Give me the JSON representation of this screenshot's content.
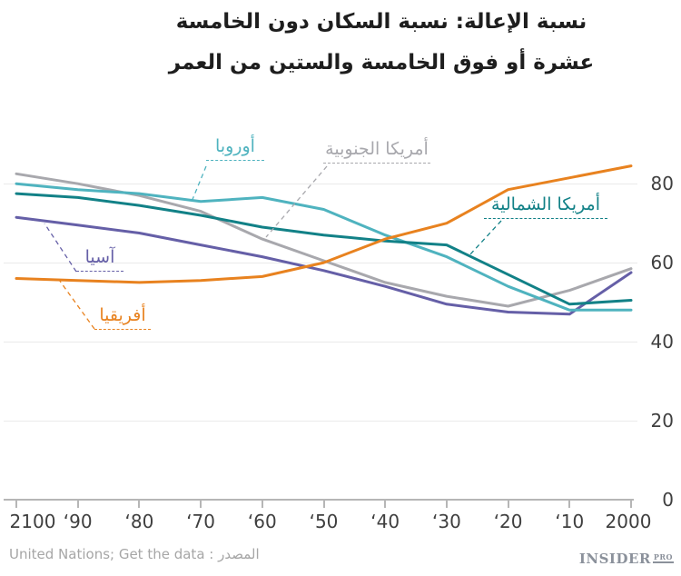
{
  "title": {
    "line1": "نسبة الإعالة: نسبة السكان دون الخامسة",
    "line2": "عشرة أو فوق الخامسة والستين من العمر"
  },
  "footer": {
    "source": "United Nations; Get the data : المصدر",
    "logo_text": "INSIDER",
    "logo_suffix": "PRO"
  },
  "chart_data": {
    "type": "line",
    "title": "نسبة الإعالة: نسبة السكان دون الخامسة عشرة أو فوق الخامسة والستين من العمر",
    "x": [
      2100,
      2090,
      2080,
      2070,
      2060,
      2050,
      2040,
      2030,
      2020,
      2010,
      2000
    ],
    "x_tick_labels": [
      "2100",
      "‘90",
      "‘80",
      "‘70",
      "‘60",
      "‘50",
      "‘40",
      "‘30",
      "‘20",
      "‘10",
      "2000"
    ],
    "x_axis_reversed": true,
    "y_ticks": [
      80,
      60,
      40,
      20,
      0
    ],
    "y_tick_labels": [
      "80",
      "60",
      "40",
      "20",
      "0"
    ],
    "ylim": [
      0,
      88
    ],
    "grid": "horizontal",
    "legend_position": "inline-labels",
    "series": [
      {
        "id": "south_america",
        "name": "أمريكا الجنوبية",
        "color": "#a8a8ad",
        "values": [
          82.5,
          80,
          77,
          73,
          66,
          60.5,
          55,
          51.5,
          49,
          53,
          58.5
        ]
      },
      {
        "id": "asia",
        "name": "آسيا",
        "color": "#655fa7",
        "values": [
          71.5,
          69.5,
          67.5,
          64.5,
          61.5,
          58,
          54,
          49.5,
          47.5,
          47,
          57.5
        ]
      },
      {
        "id": "europe",
        "name": "أوروبا",
        "color": "#4fb3bf",
        "values": [
          80,
          78.5,
          77.5,
          75.5,
          76.5,
          73.5,
          67,
          61.5,
          54,
          48,
          48
        ]
      },
      {
        "id": "north_america",
        "name": "أمريكا الشمالية",
        "color": "#128187",
        "values": [
          77.5,
          76.5,
          74.5,
          72,
          69,
          67,
          65.5,
          64.5,
          57,
          49.5,
          50.5
        ]
      },
      {
        "id": "africa",
        "name": "أفريقيا",
        "color": "#e8821f",
        "values": [
          56,
          55.5,
          55,
          55.5,
          56.5,
          60,
          66,
          70,
          78.5,
          81.5,
          84.5
        ]
      }
    ]
  }
}
